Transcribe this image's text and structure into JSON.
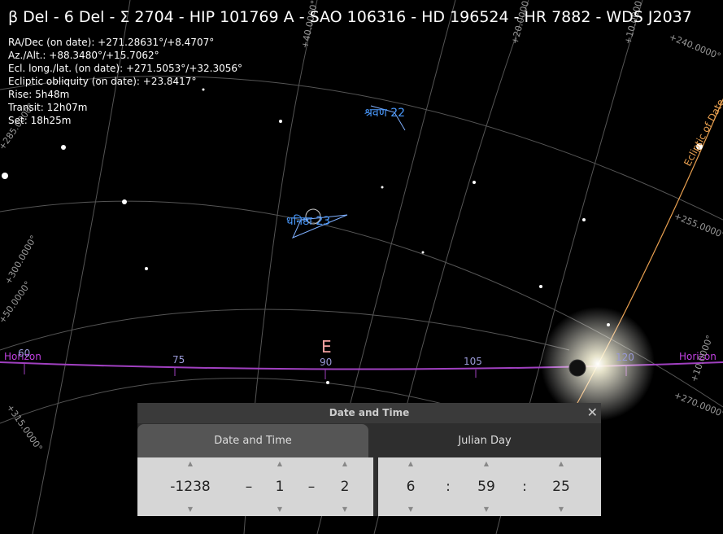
{
  "object_title": "β Del - 6 Del - Σ 2704 - HIP 101769 A - SAO 106316 - HD 196524 - HR 7882 - WDS J2037",
  "info_lines": [
    "RA/Dec (on date): +271.28631°/+8.4707°",
    "Az./Alt.: +88.3480°/+15.7062°",
    "Ecl. long./lat. (on date): +271.5053°/+32.3056°",
    "Ecliptic obliquity (on date): +23.8417°",
    "Rise: 5h48m",
    "Transit: 12h07m",
    "Set: 18h25m"
  ],
  "sky_labels": {
    "constellation_1": "श्रवण 22",
    "constellation_2": "धनिष्ठा 23",
    "cardinal": "E",
    "horizon_left": "Horizon",
    "horizon_right": "Horizon",
    "ecliptic": "Ecliptic of Date",
    "azimuths": [
      "60",
      "75",
      "90",
      "105",
      "120"
    ],
    "grid_labels": [
      "+40.0000°",
      "+20.0000°",
      "+10.0000°",
      "+240.0000°",
      "+255.0000°",
      "+270.0000°",
      "+285.0000°",
      "+300.0000°",
      "+50.0000°",
      "+315.0000°",
      "+10.0000°"
    ]
  },
  "dialog": {
    "title": "Date and Time",
    "close": "✕",
    "tabs": [
      "Date and Time",
      "Julian Day"
    ],
    "date": {
      "year": "-1238",
      "sep1": "–",
      "month": "1",
      "sep2": "–",
      "day": "2"
    },
    "time": {
      "hour": "6",
      "sep1": ":",
      "minute": "59",
      "sep2": ":",
      "second": "25"
    }
  }
}
